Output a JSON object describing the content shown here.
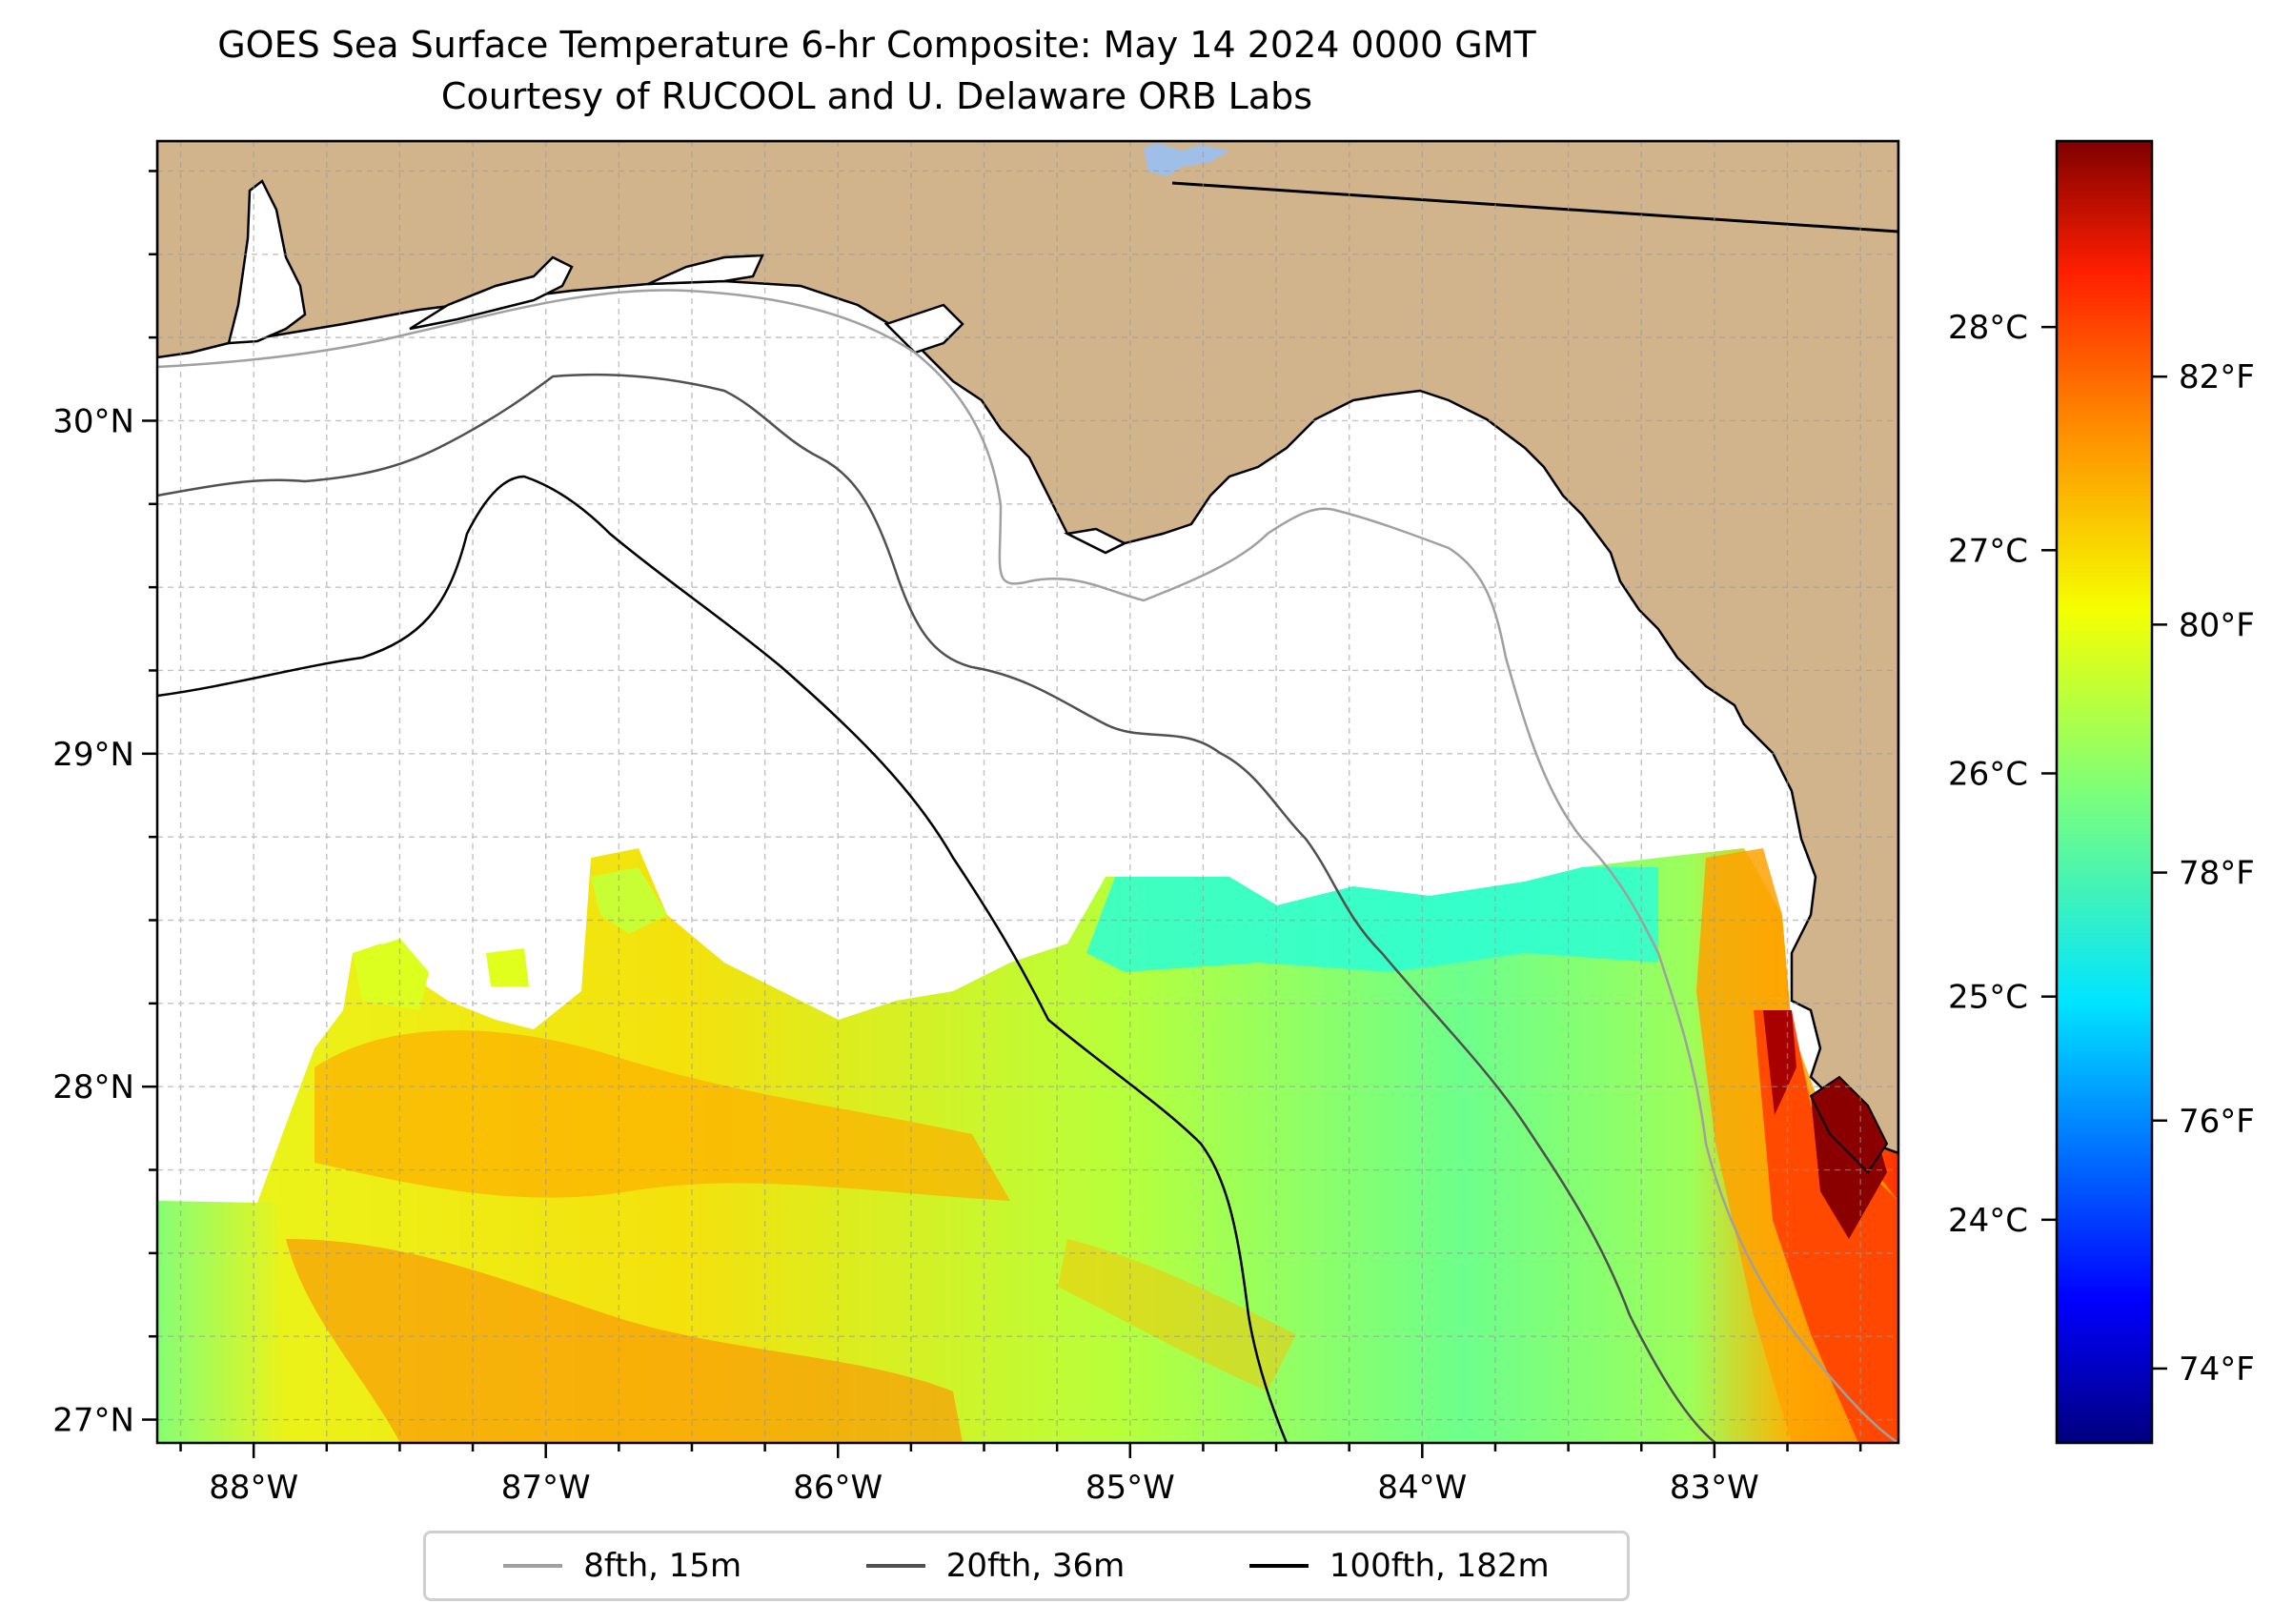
{
  "title": {
    "line1": "GOES Sea Surface Temperature 6-hr Composite: May 14 2024 0000 GMT",
    "line2": "Courtesy of RUCOOL and U. Delaware ORB Labs"
  },
  "map": {
    "extent": {
      "lon_min": -88.33,
      "lon_max": -82.37,
      "lat_min": 26.93,
      "lat_max": 30.84
    },
    "land_color": "#d2b48c",
    "ocean_nodata_color": "#ffffff",
    "gridlines": true,
    "lon_ticks": [
      {
        "value": -88,
        "label": "88°W"
      },
      {
        "value": -87,
        "label": "87°W"
      },
      {
        "value": -86,
        "label": "86°W"
      },
      {
        "value": -85,
        "label": "85°W"
      },
      {
        "value": -84,
        "label": "84°W"
      },
      {
        "value": -83,
        "label": "83°W"
      }
    ],
    "lat_ticks": [
      {
        "value": 30,
        "label": "30°N"
      },
      {
        "value": 29,
        "label": "29°N"
      },
      {
        "value": 28,
        "label": "28°N"
      },
      {
        "value": 27,
        "label": "27°N"
      }
    ]
  },
  "colorbar": {
    "colormap": "jet",
    "celsius_ticks": [
      {
        "value": 28,
        "label": "28°C"
      },
      {
        "value": 27,
        "label": "27°C"
      },
      {
        "value": 26,
        "label": "26°C"
      },
      {
        "value": 25,
        "label": "25°C"
      },
      {
        "value": 24,
        "label": "24°C"
      }
    ],
    "fahrenheit_ticks": [
      {
        "value": 82,
        "label": "82°F"
      },
      {
        "value": 80,
        "label": "80°F"
      },
      {
        "value": 78,
        "label": "78°F"
      },
      {
        "value": 76,
        "label": "76°F"
      },
      {
        "value": 74,
        "label": "74°F"
      }
    ]
  },
  "legend": {
    "placement": "bottom-center",
    "items": [
      {
        "label": "8fth, 15m",
        "color": "#a0a0a0"
      },
      {
        "label": "20fth, 36m",
        "color": "#505050"
      },
      {
        "label": "100fth, 182m",
        "color": "#000000"
      }
    ]
  }
}
